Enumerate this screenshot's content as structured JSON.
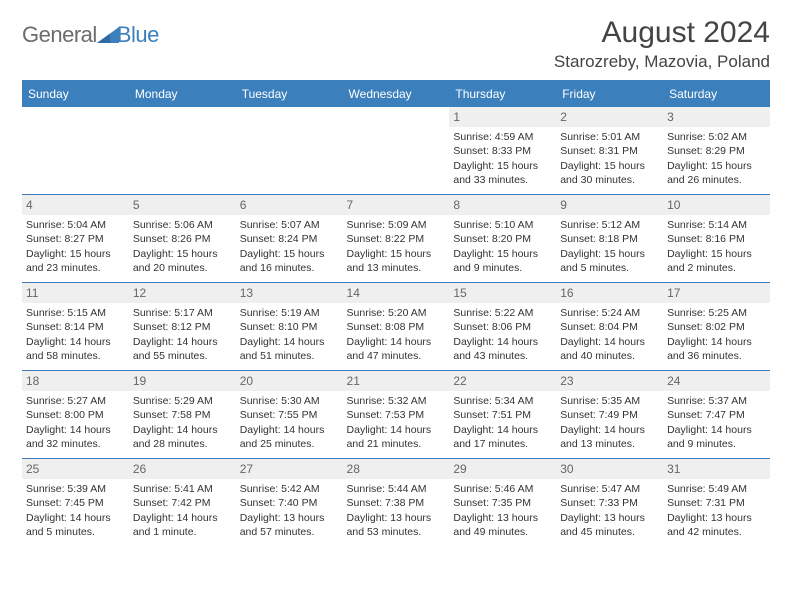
{
  "brand": {
    "part1": "General",
    "part2": "Blue"
  },
  "title": "August 2024",
  "location": "Starozreby, Mazovia, Poland",
  "colors": {
    "accent": "#3b7fbc",
    "header_text": "#ffffff",
    "daynum_bg": "#efefef",
    "daynum_text": "#666666",
    "body_text": "#333333",
    "logo_gray": "#6c6c6c"
  },
  "weekdays": [
    "Sunday",
    "Monday",
    "Tuesday",
    "Wednesday",
    "Thursday",
    "Friday",
    "Saturday"
  ],
  "weeks": [
    [
      null,
      null,
      null,
      null,
      {
        "n": "1",
        "sunrise": "4:59 AM",
        "sunset": "8:33 PM",
        "dl": "15 hours and 33 minutes."
      },
      {
        "n": "2",
        "sunrise": "5:01 AM",
        "sunset": "8:31 PM",
        "dl": "15 hours and 30 minutes."
      },
      {
        "n": "3",
        "sunrise": "5:02 AM",
        "sunset": "8:29 PM",
        "dl": "15 hours and 26 minutes."
      }
    ],
    [
      {
        "n": "4",
        "sunrise": "5:04 AM",
        "sunset": "8:27 PM",
        "dl": "15 hours and 23 minutes."
      },
      {
        "n": "5",
        "sunrise": "5:06 AM",
        "sunset": "8:26 PM",
        "dl": "15 hours and 20 minutes."
      },
      {
        "n": "6",
        "sunrise": "5:07 AM",
        "sunset": "8:24 PM",
        "dl": "15 hours and 16 minutes."
      },
      {
        "n": "7",
        "sunrise": "5:09 AM",
        "sunset": "8:22 PM",
        "dl": "15 hours and 13 minutes."
      },
      {
        "n": "8",
        "sunrise": "5:10 AM",
        "sunset": "8:20 PM",
        "dl": "15 hours and 9 minutes."
      },
      {
        "n": "9",
        "sunrise": "5:12 AM",
        "sunset": "8:18 PM",
        "dl": "15 hours and 5 minutes."
      },
      {
        "n": "10",
        "sunrise": "5:14 AM",
        "sunset": "8:16 PM",
        "dl": "15 hours and 2 minutes."
      }
    ],
    [
      {
        "n": "11",
        "sunrise": "5:15 AM",
        "sunset": "8:14 PM",
        "dl": "14 hours and 58 minutes."
      },
      {
        "n": "12",
        "sunrise": "5:17 AM",
        "sunset": "8:12 PM",
        "dl": "14 hours and 55 minutes."
      },
      {
        "n": "13",
        "sunrise": "5:19 AM",
        "sunset": "8:10 PM",
        "dl": "14 hours and 51 minutes."
      },
      {
        "n": "14",
        "sunrise": "5:20 AM",
        "sunset": "8:08 PM",
        "dl": "14 hours and 47 minutes."
      },
      {
        "n": "15",
        "sunrise": "5:22 AM",
        "sunset": "8:06 PM",
        "dl": "14 hours and 43 minutes."
      },
      {
        "n": "16",
        "sunrise": "5:24 AM",
        "sunset": "8:04 PM",
        "dl": "14 hours and 40 minutes."
      },
      {
        "n": "17",
        "sunrise": "5:25 AM",
        "sunset": "8:02 PM",
        "dl": "14 hours and 36 minutes."
      }
    ],
    [
      {
        "n": "18",
        "sunrise": "5:27 AM",
        "sunset": "8:00 PM",
        "dl": "14 hours and 32 minutes."
      },
      {
        "n": "19",
        "sunrise": "5:29 AM",
        "sunset": "7:58 PM",
        "dl": "14 hours and 28 minutes."
      },
      {
        "n": "20",
        "sunrise": "5:30 AM",
        "sunset": "7:55 PM",
        "dl": "14 hours and 25 minutes."
      },
      {
        "n": "21",
        "sunrise": "5:32 AM",
        "sunset": "7:53 PM",
        "dl": "14 hours and 21 minutes."
      },
      {
        "n": "22",
        "sunrise": "5:34 AM",
        "sunset": "7:51 PM",
        "dl": "14 hours and 17 minutes."
      },
      {
        "n": "23",
        "sunrise": "5:35 AM",
        "sunset": "7:49 PM",
        "dl": "14 hours and 13 minutes."
      },
      {
        "n": "24",
        "sunrise": "5:37 AM",
        "sunset": "7:47 PM",
        "dl": "14 hours and 9 minutes."
      }
    ],
    [
      {
        "n": "25",
        "sunrise": "5:39 AM",
        "sunset": "7:45 PM",
        "dl": "14 hours and 5 minutes."
      },
      {
        "n": "26",
        "sunrise": "5:41 AM",
        "sunset": "7:42 PM",
        "dl": "14 hours and 1 minute."
      },
      {
        "n": "27",
        "sunrise": "5:42 AM",
        "sunset": "7:40 PM",
        "dl": "13 hours and 57 minutes."
      },
      {
        "n": "28",
        "sunrise": "5:44 AM",
        "sunset": "7:38 PM",
        "dl": "13 hours and 53 minutes."
      },
      {
        "n": "29",
        "sunrise": "5:46 AM",
        "sunset": "7:35 PM",
        "dl": "13 hours and 49 minutes."
      },
      {
        "n": "30",
        "sunrise": "5:47 AM",
        "sunset": "7:33 PM",
        "dl": "13 hours and 45 minutes."
      },
      {
        "n": "31",
        "sunrise": "5:49 AM",
        "sunset": "7:31 PM",
        "dl": "13 hours and 42 minutes."
      }
    ]
  ],
  "labels": {
    "sunrise": "Sunrise: ",
    "sunset": "Sunset: ",
    "daylight": "Daylight: "
  }
}
